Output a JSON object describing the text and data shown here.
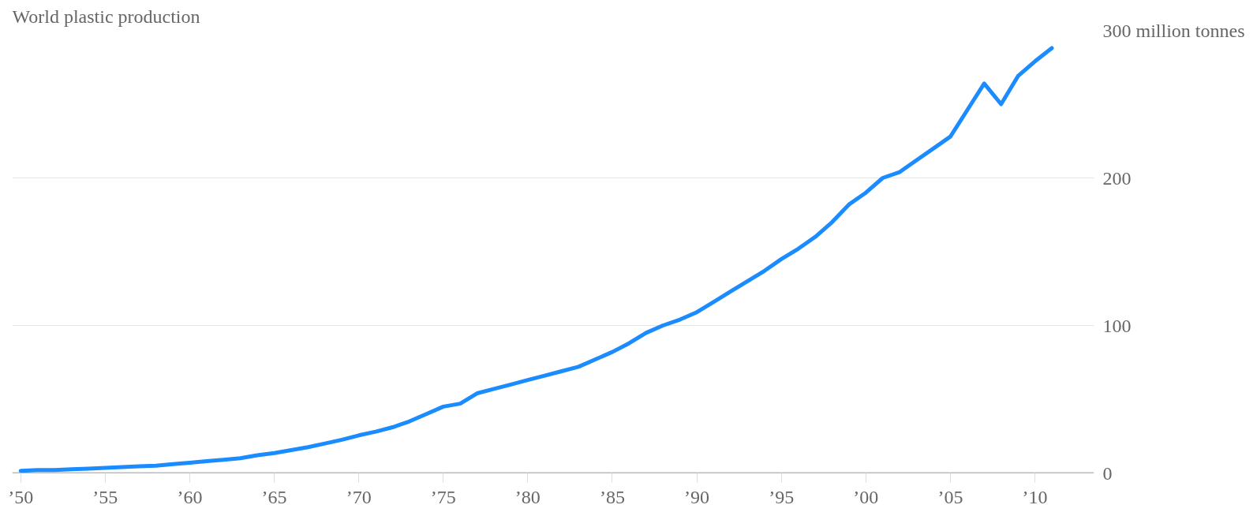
{
  "chart_data": {
    "type": "line",
    "title": "World plastic production",
    "x": [
      1950,
      1951,
      1952,
      1953,
      1954,
      1955,
      1956,
      1957,
      1958,
      1959,
      1960,
      1961,
      1962,
      1963,
      1964,
      1965,
      1966,
      1967,
      1968,
      1969,
      1970,
      1971,
      1972,
      1973,
      1974,
      1975,
      1976,
      1977,
      1978,
      1979,
      1980,
      1981,
      1982,
      1983,
      1984,
      1985,
      1986,
      1987,
      1988,
      1989,
      1990,
      1991,
      1992,
      1993,
      1994,
      1995,
      1996,
      1997,
      1998,
      1999,
      2000,
      2001,
      2002,
      2003,
      2004,
      2005,
      2006,
      2007,
      2008,
      2009,
      2010,
      2011
    ],
    "series": [
      {
        "color": "#1a8cff",
        "values": [
          1.5,
          2,
          2,
          2.5,
          3,
          3.5,
          4,
          4.5,
          5,
          6,
          7,
          8,
          9,
          10,
          12,
          13.5,
          15.5,
          17.5,
          20,
          22.5,
          25.5,
          28,
          31,
          35,
          40,
          45,
          47,
          54,
          57,
          60,
          63,
          66,
          69,
          72,
          77,
          82,
          88,
          95,
          100,
          104,
          109,
          116,
          123,
          130,
          137,
          145,
          152,
          160,
          170,
          182,
          190,
          200,
          204,
          212,
          220,
          228,
          246,
          264,
          250,
          269,
          279,
          288
        ]
      }
    ],
    "xlim": [
      1949.5,
      2013.5
    ],
    "ylim": [
      0,
      300
    ],
    "xticks": [
      {
        "value": 1950,
        "label": "’50"
      },
      {
        "value": 1955,
        "label": "’55"
      },
      {
        "value": 1960,
        "label": "’60"
      },
      {
        "value": 1965,
        "label": "’65"
      },
      {
        "value": 1970,
        "label": "’70"
      },
      {
        "value": 1975,
        "label": "’75"
      },
      {
        "value": 1980,
        "label": "’80"
      },
      {
        "value": 1985,
        "label": "’85"
      },
      {
        "value": 1990,
        "label": "’90"
      },
      {
        "value": 1995,
        "label": "’95"
      },
      {
        "value": 2000,
        "label": "’00"
      },
      {
        "value": 2005,
        "label": "’05"
      },
      {
        "value": 2010,
        "label": "’10"
      }
    ],
    "yticks": [
      0,
      100,
      200,
      {
        "value": 300,
        "label": "300 million tonnes"
      }
    ],
    "grid": "y",
    "marker": "none",
    "line_style": "solid"
  }
}
